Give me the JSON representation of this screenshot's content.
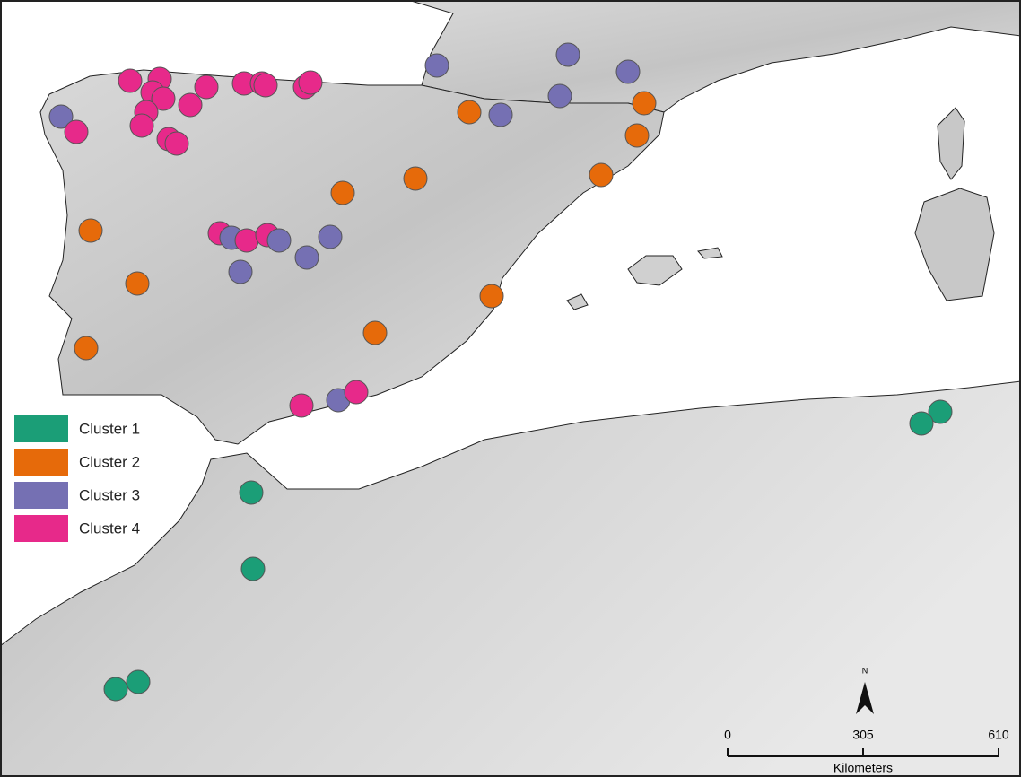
{
  "legend": {
    "items": [
      {
        "label": "Cluster 1",
        "color": "#1b9e77"
      },
      {
        "label": "Cluster 2",
        "color": "#e66a0a"
      },
      {
        "label": "Cluster 3",
        "color": "#7570b3"
      },
      {
        "label": "Cluster 4",
        "color": "#e7298a"
      }
    ]
  },
  "north_arrow": {
    "label": "N"
  },
  "scale_bar": {
    "ticks": [
      "0",
      "305",
      "610"
    ],
    "unit": "Kilometers"
  }
}
